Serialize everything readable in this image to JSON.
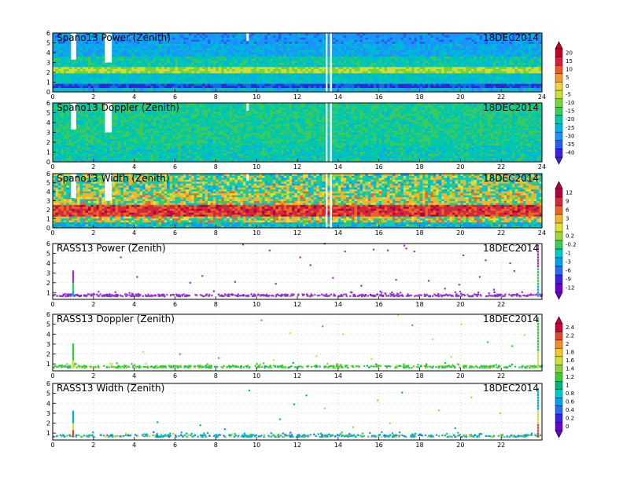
{
  "chart_data": [
    {
      "type": "heatmap",
      "title": "Spano13 Power (Zenith)",
      "date": "18DEC2014",
      "x_ticks": [
        "0",
        "2",
        "4",
        "6",
        "8",
        "10",
        "12",
        "14",
        "16",
        "18",
        "20",
        "22",
        "24"
      ],
      "y_ticks": [
        "0",
        "1",
        "2",
        "3",
        "4",
        "5",
        "6"
      ],
      "xlim": [
        0,
        24
      ],
      "ylim": [
        0,
        6
      ],
      "colorbar": [
        "20",
        "15",
        "10",
        "5",
        "0",
        "-5",
        "-10",
        "-15",
        "-20",
        "-25",
        "-30",
        "-35",
        "-40"
      ],
      "bands": [
        {
          "y0": 0.0,
          "y1": 0.4,
          "value": -22
        },
        {
          "y0": 0.4,
          "y1": 0.9,
          "value": -36
        },
        {
          "y0": 0.9,
          "y1": 1.9,
          "value": -20
        },
        {
          "y0": 1.9,
          "y1": 2.5,
          "value": -5
        },
        {
          "y0": 2.5,
          "y1": 3.6,
          "value": -18
        },
        {
          "y0": 3.6,
          "y1": 5.0,
          "value": -24
        },
        {
          "y0": 5.0,
          "y1": 6.0,
          "value": -27
        }
      ],
      "gaps": [
        [
          0.9,
          1.15,
          3.3
        ],
        [
          2.55,
          2.9,
          3.0
        ],
        [
          9.5,
          9.62,
          5.2
        ],
        [
          13.4,
          13.48,
          0.0
        ],
        [
          13.6,
          13.7,
          0.0
        ]
      ]
    },
    {
      "type": "heatmap",
      "title": "Spano13 Doppler (Zenith)",
      "date": "18DEC2014",
      "x_ticks": [
        "0",
        "2",
        "4",
        "6",
        "8",
        "10",
        "12",
        "14",
        "16",
        "18",
        "20",
        "22",
        "24"
      ],
      "y_ticks": [
        "0",
        "1",
        "2",
        "3",
        "4",
        "5",
        "6"
      ],
      "xlim": [
        0,
        24
      ],
      "ylim": [
        0,
        6
      ],
      "bands": [
        {
          "y0": 0.0,
          "y1": 1.8,
          "value": -18
        },
        {
          "y0": 1.8,
          "y1": 6.0,
          "value": -16
        }
      ],
      "gaps": [
        [
          0.9,
          1.15,
          3.3
        ],
        [
          2.55,
          2.9,
          3.0
        ],
        [
          9.5,
          9.62,
          5.2
        ],
        [
          13.4,
          13.48,
          0.0
        ],
        [
          13.6,
          13.7,
          0.0
        ]
      ]
    },
    {
      "type": "heatmap",
      "title": "Spano13 Width (Zenith)",
      "date": "18DEC2014",
      "x_ticks": [
        "0",
        "2",
        "4",
        "6",
        "8",
        "10",
        "12",
        "14",
        "16",
        "18",
        "20",
        "22",
        "24"
      ],
      "y_ticks": [
        "0",
        "1",
        "2",
        "3",
        "4",
        "5",
        "6"
      ],
      "xlim": [
        0,
        24
      ],
      "ylim": [
        0,
        6
      ],
      "colorbar": [
        "12",
        "9",
        "6",
        "3",
        "1",
        "0.2",
        "-0.2",
        "-1",
        "-3",
        "-6",
        "-9",
        "-12"
      ],
      "bands": [
        {
          "y0": 0.0,
          "y1": 0.7,
          "value": -3
        },
        {
          "y0": 0.7,
          "y1": 1.2,
          "value": 0.5
        },
        {
          "y0": 1.2,
          "y1": 2.6,
          "value": 7
        },
        {
          "y0": 2.6,
          "y1": 4.0,
          "value": 0.5
        },
        {
          "y0": 4.0,
          "y1": 6.0,
          "value": -0.5
        }
      ],
      "gaps": [
        [
          0.9,
          1.15,
          3.3
        ],
        [
          2.55,
          2.9,
          3.0
        ],
        [
          9.5,
          9.62,
          5.2
        ],
        [
          13.4,
          13.48,
          0.0
        ],
        [
          13.6,
          13.7,
          0.0
        ]
      ]
    },
    {
      "type": "scatter",
      "title": "RASS13 Power (Zenith)",
      "date": "18DEC2014",
      "x_ticks": [
        "0",
        "2",
        "4",
        "6",
        "8",
        "10",
        "12",
        "14",
        "16",
        "18",
        "20",
        "22"
      ],
      "y_ticks": [
        "1",
        "2",
        "3",
        "4",
        "5",
        "6"
      ],
      "xlim": [
        0,
        24
      ],
      "ylim": [
        0.3,
        6
      ],
      "layer_height": 0.72,
      "main_color": "#9933cc",
      "features": [
        {
          "x": 1.0,
          "y0": 0.6,
          "y1": 3.2
        },
        {
          "x": 23.8,
          "y0": 0.6,
          "y1": 6.0
        }
      ],
      "scatter_points": [
        [
          9.3,
          5.9
        ],
        [
          10.6,
          5.3
        ],
        [
          12.1,
          4.6
        ],
        [
          12.6,
          3.8
        ],
        [
          13.3,
          6.0
        ],
        [
          14.3,
          5.2
        ],
        [
          15.7,
          5.4
        ],
        [
          16.4,
          5.3
        ],
        [
          17.2,
          5.8
        ],
        [
          17.3,
          5.5
        ],
        [
          17.7,
          5.2
        ],
        [
          20.1,
          4.8
        ],
        [
          21.2,
          4.3
        ],
        [
          22.4,
          4.0
        ],
        [
          22.9,
          5.6
        ],
        [
          3.3,
          4.6
        ],
        [
          4.1,
          2.6
        ],
        [
          6.7,
          2.0
        ],
        [
          7.3,
          2.7
        ],
        [
          8.9,
          2.1
        ],
        [
          10.9,
          1.9
        ],
        [
          13.7,
          2.5
        ],
        [
          15.1,
          1.7
        ],
        [
          16.8,
          2.3
        ],
        [
          18.4,
          2.2
        ],
        [
          19.2,
          1.4
        ],
        [
          20.9,
          2.6
        ],
        [
          22.6,
          3.2
        ],
        [
          21.6,
          1.3
        ],
        [
          19.9,
          1.8
        ]
      ]
    },
    {
      "type": "scatter",
      "title": "RASS13 Doppler (Zenith)",
      "date": "18DEC2014",
      "x_ticks": [
        "0",
        "2",
        "4",
        "6",
        "8",
        "10",
        "12",
        "14",
        "16",
        "18",
        "20",
        "22"
      ],
      "y_ticks": [
        "1",
        "2",
        "3",
        "4",
        "5",
        "6"
      ],
      "xlim": [
        0,
        24
      ],
      "ylim": [
        0.3,
        6
      ],
      "layer_height": 0.72,
      "main_color": "#33cc33",
      "colorbar": [
        "2.4",
        "2.2",
        "2",
        "1.8",
        "1.6",
        "1.4",
        "1.2",
        "1",
        "0.8",
        "0.6",
        "0.4",
        "0.2",
        "0"
      ],
      "features": [
        {
          "x": 1.0,
          "y0": 0.6,
          "y1": 3.0
        },
        {
          "x": 23.8,
          "y0": 0.6,
          "y1": 5.8
        }
      ],
      "scatter_points": [
        [
          10.2,
          5.4
        ],
        [
          11.6,
          4.1
        ],
        [
          13.2,
          4.8
        ],
        [
          14.2,
          4.0
        ],
        [
          16.9,
          5.9
        ],
        [
          17.6,
          4.9
        ],
        [
          18.6,
          3.5
        ],
        [
          20.0,
          5.0
        ],
        [
          21.3,
          3.2
        ],
        [
          22.5,
          2.8
        ],
        [
          4.4,
          2.2
        ],
        [
          6.2,
          2.0
        ],
        [
          8.1,
          1.6
        ],
        [
          10.8,
          1.4
        ],
        [
          12.9,
          1.8
        ],
        [
          15.6,
          1.5
        ],
        [
          19.5,
          1.7
        ],
        [
          23.1,
          3.9
        ]
      ]
    },
    {
      "type": "scatter",
      "title": "RASS13 Width (Zenith)",
      "date": "18DEC2014",
      "x_ticks": [
        "0",
        "2",
        "4",
        "6",
        "8",
        "10",
        "12",
        "14",
        "16",
        "18",
        "20",
        "22"
      ],
      "y_ticks": [
        "1",
        "2",
        "3",
        "4",
        "5",
        "6"
      ],
      "xlim": [
        0,
        24
      ],
      "ylim": [
        0.3,
        6
      ],
      "layer_height": 0.72,
      "main_color": "#00b0c8",
      "features": [
        {
          "x": 1.0,
          "y0": 0.6,
          "y1": 3.2
        },
        {
          "x": 23.8,
          "y0": 0.6,
          "y1": 5.6
        }
      ],
      "scatter_points": [
        [
          9.6,
          5.3
        ],
        [
          11.8,
          3.9
        ],
        [
          12.4,
          4.8
        ],
        [
          13.3,
          3.5
        ],
        [
          15.9,
          4.3
        ],
        [
          17.1,
          5.1
        ],
        [
          18.9,
          3.3
        ],
        [
          20.5,
          4.6
        ],
        [
          21.9,
          3.0
        ],
        [
          22.7,
          5.9
        ],
        [
          5.1,
          2.1
        ],
        [
          7.2,
          1.8
        ],
        [
          8.4,
          1.4
        ],
        [
          11.1,
          2.4
        ],
        [
          14.7,
          1.6
        ],
        [
          16.5,
          2.0
        ],
        [
          19.7,
          1.5
        ]
      ]
    }
  ]
}
